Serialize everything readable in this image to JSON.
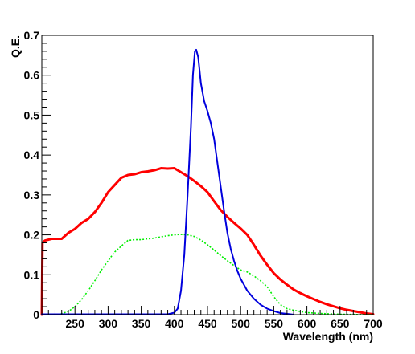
{
  "chart_data": {
    "type": "line",
    "xlabel": "Wavelength (nm)",
    "ylabel": "Q.E.",
    "xlim": [
      200,
      700
    ],
    "ylim": [
      0,
      0.7
    ],
    "x_ticks": [
      250,
      300,
      350,
      400,
      450,
      500,
      550,
      600,
      650,
      700
    ],
    "y_ticks": [
      0,
      0.1,
      0.2,
      0.3,
      0.4,
      0.5,
      0.6,
      0.7
    ],
    "grid": false,
    "legend": "none",
    "series": [
      {
        "color": "#ff0000",
        "style": "solid",
        "points": [
          [
            200,
            0
          ],
          [
            201,
            0.18
          ],
          [
            205,
            0.186
          ],
          [
            215,
            0.19
          ],
          [
            230,
            0.19
          ],
          [
            240,
            0.205
          ],
          [
            250,
            0.215
          ],
          [
            260,
            0.23
          ],
          [
            270,
            0.24
          ],
          [
            280,
            0.257
          ],
          [
            290,
            0.28
          ],
          [
            300,
            0.307
          ],
          [
            310,
            0.325
          ],
          [
            320,
            0.343
          ],
          [
            330,
            0.35
          ],
          [
            340,
            0.352
          ],
          [
            350,
            0.357
          ],
          [
            360,
            0.359
          ],
          [
            370,
            0.362
          ],
          [
            380,
            0.367
          ],
          [
            390,
            0.366
          ],
          [
            400,
            0.367
          ],
          [
            410,
            0.357
          ],
          [
            420,
            0.347
          ],
          [
            430,
            0.335
          ],
          [
            440,
            0.322
          ],
          [
            450,
            0.307
          ],
          [
            460,
            0.284
          ],
          [
            470,
            0.262
          ],
          [
            480,
            0.245
          ],
          [
            490,
            0.23
          ],
          [
            500,
            0.216
          ],
          [
            510,
            0.2
          ],
          [
            520,
            0.175
          ],
          [
            530,
            0.148
          ],
          [
            540,
            0.125
          ],
          [
            550,
            0.104
          ],
          [
            560,
            0.088
          ],
          [
            570,
            0.075
          ],
          [
            580,
            0.063
          ],
          [
            590,
            0.054
          ],
          [
            600,
            0.046
          ],
          [
            610,
            0.039
          ],
          [
            620,
            0.032
          ],
          [
            630,
            0.026
          ],
          [
            640,
            0.021
          ],
          [
            650,
            0.016
          ],
          [
            660,
            0.012
          ],
          [
            670,
            0.009
          ],
          [
            680,
            0.006
          ],
          [
            690,
            0.003
          ],
          [
            700,
            0.001
          ]
        ]
      },
      {
        "color": "#00ee00",
        "style": "dotted",
        "points": [
          [
            200,
            0
          ],
          [
            225,
            0
          ],
          [
            240,
            0.008
          ],
          [
            250,
            0.02
          ],
          [
            260,
            0.038
          ],
          [
            270,
            0.06
          ],
          [
            280,
            0.085
          ],
          [
            290,
            0.112
          ],
          [
            300,
            0.135
          ],
          [
            310,
            0.157
          ],
          [
            320,
            0.172
          ],
          [
            330,
            0.186
          ],
          [
            340,
            0.188
          ],
          [
            350,
            0.188
          ],
          [
            360,
            0.19
          ],
          [
            370,
            0.192
          ],
          [
            380,
            0.195
          ],
          [
            390,
            0.198
          ],
          [
            400,
            0.2
          ],
          [
            410,
            0.201
          ],
          [
            420,
            0.2
          ],
          [
            430,
            0.196
          ],
          [
            440,
            0.187
          ],
          [
            450,
            0.175
          ],
          [
            460,
            0.162
          ],
          [
            470,
            0.148
          ],
          [
            480,
            0.135
          ],
          [
            490,
            0.123
          ],
          [
            500,
            0.112
          ],
          [
            510,
            0.107
          ],
          [
            520,
            0.097
          ],
          [
            530,
            0.085
          ],
          [
            540,
            0.07
          ],
          [
            550,
            0.045
          ],
          [
            560,
            0.025
          ],
          [
            570,
            0.015
          ],
          [
            580,
            0.011
          ],
          [
            590,
            0.008
          ],
          [
            600,
            0.005
          ],
          [
            620,
            0.003
          ],
          [
            650,
            0.001
          ],
          [
            700,
            0
          ]
        ]
      },
      {
        "color": "#0000dd",
        "style": "solid",
        "points": [
          [
            200,
            0.001
          ],
          [
            390,
            0.001
          ],
          [
            400,
            0.005
          ],
          [
            405,
            0.015
          ],
          [
            410,
            0.06
          ],
          [
            415,
            0.15
          ],
          [
            420,
            0.3
          ],
          [
            425,
            0.47
          ],
          [
            428,
            0.6
          ],
          [
            431,
            0.66
          ],
          [
            433,
            0.664
          ],
          [
            436,
            0.645
          ],
          [
            440,
            0.58
          ],
          [
            445,
            0.535
          ],
          [
            450,
            0.51
          ],
          [
            455,
            0.48
          ],
          [
            460,
            0.44
          ],
          [
            465,
            0.38
          ],
          [
            470,
            0.32
          ],
          [
            475,
            0.26
          ],
          [
            480,
            0.205
          ],
          [
            485,
            0.165
          ],
          [
            490,
            0.135
          ],
          [
            495,
            0.11
          ],
          [
            500,
            0.09
          ],
          [
            510,
            0.06
          ],
          [
            520,
            0.04
          ],
          [
            530,
            0.025
          ],
          [
            540,
            0.015
          ],
          [
            550,
            0.009
          ],
          [
            560,
            0.004
          ],
          [
            570,
            0.002
          ],
          [
            580,
            0
          ]
        ]
      }
    ]
  }
}
